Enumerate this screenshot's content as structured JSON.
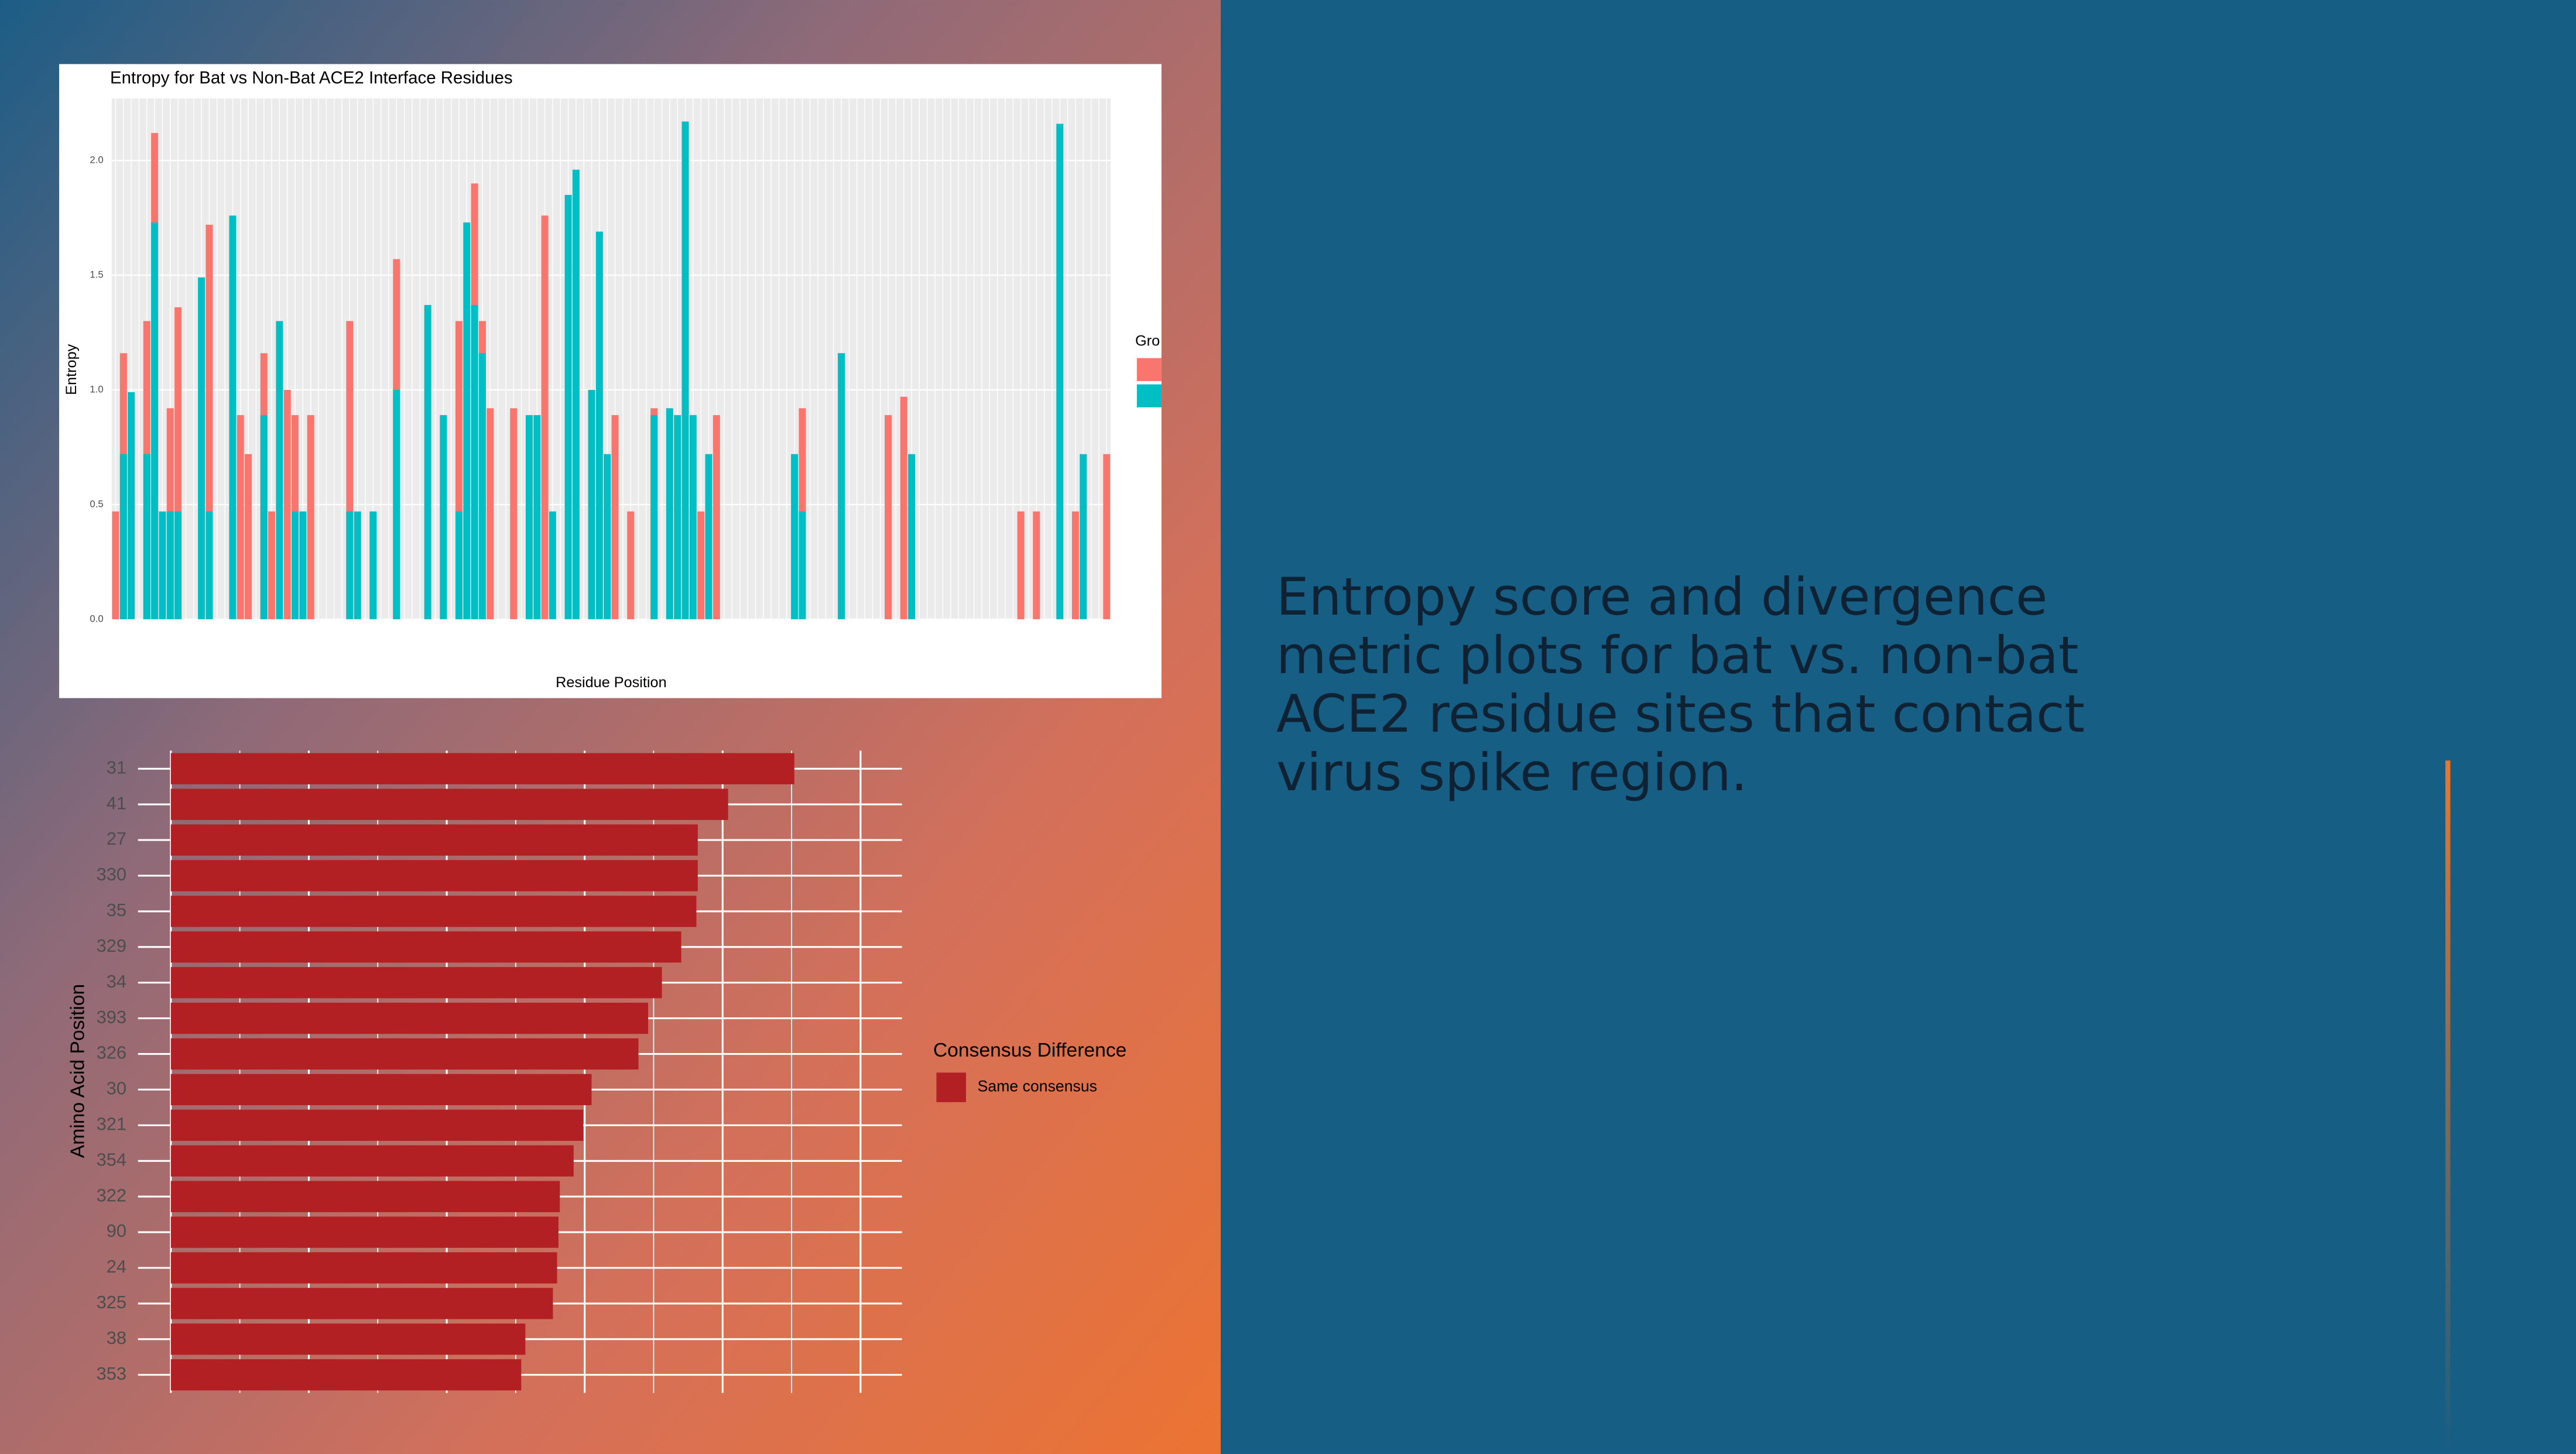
{
  "slide": {
    "text": "Entropy score and divergence metric plots for bat vs. non-bat ACE2 residue sites that contact virus spike region."
  },
  "chart_data": [
    {
      "type": "bar",
      "title": "Entropy for Bat vs Non-Bat ACE2 Interface Residues",
      "x_label": "Residue Position",
      "y_label": "Entropy",
      "legend_title": "Gro",
      "categories": [
        null,
        null,
        null,
        null,
        null,
        null,
        null,
        null,
        null,
        null,
        null,
        null,
        null,
        null,
        null,
        null,
        null,
        null,
        null,
        null,
        null,
        null,
        null,
        null,
        null,
        null,
        null,
        null,
        null,
        null,
        null,
        null,
        null,
        null,
        null,
        null,
        null,
        null,
        null,
        null,
        null,
        null,
        null,
        null,
        null,
        null,
        null,
        null,
        null,
        null,
        null,
        null,
        null,
        null,
        null,
        null,
        null,
        null,
        null,
        null,
        null,
        null,
        null,
        null,
        null,
        null,
        null,
        null,
        null,
        null,
        null,
        null,
        null,
        null,
        null,
        null,
        null,
        null,
        null,
        null,
        null,
        null,
        null,
        null,
        null,
        null,
        null,
        null,
        null,
        null,
        null,
        null,
        null,
        null,
        null,
        null,
        null,
        null,
        null,
        null,
        null,
        null,
        null,
        null,
        null,
        null,
        null,
        null,
        null,
        null,
        null,
        null,
        null,
        null,
        null,
        null,
        null,
        null,
        null,
        null,
        null,
        null,
        null,
        null,
        null,
        null,
        null,
        null
      ],
      "series": [
        {
          "color": "#f8766d",
          "values": [
            0.47,
            1.16,
            null,
            null,
            1.3,
            2.12,
            null,
            0.92,
            1.36,
            null,
            null,
            null,
            1.72,
            null,
            null,
            null,
            0.89,
            0.72,
            null,
            1.16,
            0.47,
            null,
            1.0,
            0.89,
            null,
            0.89,
            null,
            null,
            null,
            null,
            1.3,
            null,
            null,
            null,
            null,
            null,
            1.57,
            null,
            null,
            null,
            null,
            null,
            null,
            null,
            1.3,
            null,
            1.9,
            1.3,
            0.92,
            null,
            null,
            0.92,
            null,
            null,
            null,
            1.76,
            null,
            null,
            null,
            null,
            null,
            null,
            null,
            null,
            0.89,
            null,
            0.47,
            null,
            null,
            0.92,
            null,
            null,
            null,
            null,
            null,
            0.47,
            null,
            0.89,
            null,
            null,
            null,
            null,
            null,
            null,
            null,
            null,
            null,
            null,
            0.92,
            null,
            null,
            null,
            null,
            null,
            null,
            null,
            null,
            null,
            null,
            0.89,
            null,
            0.97,
            null,
            null,
            null,
            null,
            null,
            null,
            null,
            null,
            null,
            null,
            null,
            null,
            null,
            null,
            0.47,
            null,
            0.47,
            null,
            null,
            null,
            null,
            0.47,
            null,
            null,
            null,
            0.72
          ]
        },
        {
          "color": "#00bfc4",
          "values": [
            null,
            0.72,
            0.99,
            null,
            0.72,
            1.73,
            0.47,
            0.47,
            0.47,
            null,
            null,
            1.49,
            0.47,
            null,
            null,
            1.76,
            null,
            null,
            null,
            0.89,
            null,
            1.3,
            null,
            0.47,
            0.47,
            null,
            null,
            null,
            null,
            null,
            0.47,
            0.47,
            null,
            0.47,
            null,
            null,
            1.0,
            null,
            null,
            null,
            1.37,
            null,
            0.89,
            null,
            0.47,
            1.73,
            1.37,
            1.16,
            null,
            null,
            null,
            null,
            null,
            0.89,
            0.89,
            null,
            0.47,
            null,
            1.85,
            1.96,
            null,
            1.0,
            1.69,
            0.72,
            null,
            null,
            null,
            null,
            null,
            0.89,
            null,
            0.92,
            0.89,
            2.17,
            0.89,
            null,
            0.72,
            null,
            null,
            null,
            null,
            null,
            null,
            null,
            null,
            null,
            null,
            0.72,
            0.47,
            null,
            null,
            null,
            null,
            1.16,
            null,
            null,
            null,
            null,
            null,
            null,
            null,
            null,
            0.72,
            null,
            null,
            null,
            null,
            null,
            null,
            null,
            null,
            null,
            null,
            null,
            null,
            null,
            null,
            null,
            null,
            null,
            null,
            2.16,
            null,
            null,
            0.72,
            null,
            null,
            null
          ]
        }
      ],
      "ylim": [
        0,
        2.27
      ],
      "yticks": [
        {
          "value": 0,
          "label": "0.0"
        },
        0.5,
        {
          "value": 1,
          "label": "1.0"
        },
        1.5,
        {
          "value": 2,
          "label": "2.0"
        }
      ],
      "grid": true
    },
    {
      "type": "hbar",
      "y_label": "Amino Acid Position",
      "legend_title": "Consensus Difference",
      "categories": [
        "31",
        "41",
        "27",
        "330",
        "35",
        "329",
        "34",
        "393",
        "326",
        "30",
        "321",
        "354",
        "322",
        "90",
        "24",
        "325",
        "38",
        "353"
      ],
      "series": [
        {
          "name": "Same consensus",
          "color": "#b22024",
          "values": [
            4.52,
            4.04,
            3.82,
            3.82,
            3.81,
            3.7,
            3.56,
            3.46,
            3.39,
            3.05,
            2.99,
            2.92,
            2.82,
            2.81,
            2.8,
            2.77,
            2.57,
            2.54
          ]
        }
      ],
      "xlim": [
        0,
        5.3
      ],
      "xticks": [
        0,
        0.5,
        1,
        1.5,
        2,
        2.5,
        3,
        3.5,
        4,
        4.5,
        5
      ],
      "grid": true
    }
  ]
}
